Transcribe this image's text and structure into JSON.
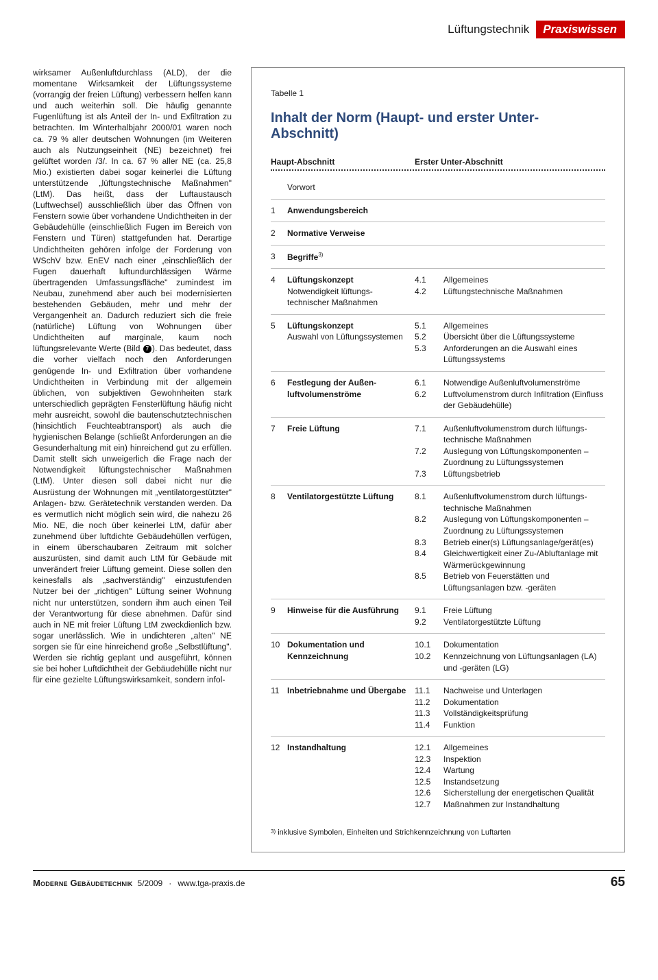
{
  "header": {
    "category": "Lüftungstechnik",
    "badge": "Praxiswissen",
    "badge_bg": "#cc0000"
  },
  "left_text": "wirksamer Außenluftdurchlass (ALD), der die momentane Wirksamkeit der Lüftungssysteme (vorrangig der freien Lüftung) verbessern helfen kann und auch weiterhin soll. Die häufig genannte Fugenlüftung ist als Anteil der In- und Exfiltration zu betrachten.\nIm Winterhalbjahr 2000/01 waren noch ca. 79 % aller deutschen Wohnungen (im Weiteren auch als Nutzungseinheit (NE) bezeichnet) frei gelüftet worden /3/. In ca. 67 % aller NE (ca. 25,8 Mio.) existierten dabei sogar keinerlei die Lüftung unterstützende „lüftungstechnische Maßnahmen\" (LtM). Das heißt, dass der Luftaustausch (Luftwechsel) ausschließlich über das Öffnen von Fenstern sowie über vorhandene Undichtheiten in der Gebäudehülle (einschließlich Fugen im Bereich von Fenstern und Türen) stattgefunden hat. Derartige Undichtheiten gehören infolge der Forderung von WSchV bzw. EnEV nach einer „einschließlich der Fugen dauerhaft luftundurchlässigen Wärme übertragenden Umfassungsfläche\" zumindest im Neubau, zunehmend aber auch bei modernisierten bestehenden Gebäuden, mehr und mehr der Vergangenheit an. Dadurch reduziert sich die freie (natürliche) Lüftung von Wohnungen über Undichtheiten auf marginale, kaum noch lüftungsrelevante Werte (Bild [7]). Das bedeutet, dass die vorher vielfach noch den Anforderungen genügende In- und Exfiltration über vorhandene Undichtheiten in Verbindung mit der allgemein üblichen, von subjektiven Gewohnheiten stark unterschiedlich geprägten Fensterlüftung häufig nicht mehr ausreicht, sowohl die bautenschutztechnischen (hinsichtlich Feuchteabtransport) als auch die hygienischen Belange (schließt Anforderungen an die Gesunderhaltung mit ein) hinreichend gut zu erfüllen. Damit stellt sich unweigerlich die Frage nach der Notwendigkeit lüftungstechnischer Maßnahmen (LtM). Unter diesen soll dabei nicht nur die Ausrüstung der Wohnungen mit „ventilatorgestützter\" Anlagen- bzw. Gerätetechnik verstanden werden. Da es vermutlich nicht möglich sein wird, die nahezu 26 Mio. NE, die noch über keinerlei LtM, dafür aber zunehmend über luftdichte Gebäudehüllen verfügen, in einem überschaubaren Zeitraum mit solcher auszurüsten, sind damit auch LtM für Gebäude mit unverändert freier Lüftung gemeint. Diese sollen den keinesfalls als „sachverständig\" einzustufenden Nutzer bei der „richtigen\" Lüftung seiner Wohnung nicht nur unterstützen, sondern ihm auch einen Teil der Verantwortung für diese abnehmen. Dafür sind auch in NE mit freier Lüftung LtM zweckdienlich bzw. sogar unerlässlich. Wie in undichteren „alten\" NE sorgen sie für eine hinreichend große „Selbstlüftung\". Werden sie richtig geplant und ausgeführt, können sie bei hoher Luftdichtheit der Gebäudehülle nicht nur für eine gezielte Lüftungswirksamkeit, sondern infol-",
  "bullet_number": "7",
  "table": {
    "caption": "Tabelle 1",
    "title": "Inhalt der Norm (Haupt- und erster Unter-Abschnitt)",
    "title_color": "#2e4a7a",
    "head": [
      "Haupt-Abschnitt",
      "Erster Unter-Abschnitt"
    ],
    "footnote_mark": "3)",
    "footnote_text": "inklusive Symbolen, Einheiten und Strichkennzeichnung von Luftarten",
    "sections": [
      {
        "num": "",
        "main_bold": "",
        "main_rest": "Vorwort",
        "subs": []
      },
      {
        "num": "1",
        "main_bold": "Anwendungsbereich",
        "main_rest": "",
        "subs": []
      },
      {
        "num": "2",
        "main_bold": "Normative Verweise",
        "main_rest": "",
        "subs": []
      },
      {
        "num": "3",
        "main_bold": "Begriffe",
        "main_sup": "3)",
        "main_rest": "",
        "subs": []
      },
      {
        "num": "4",
        "main_bold": "Lüftungskonzept",
        "main_rest": "Notwendigkeit lüftungs­technischer Maßnahmen",
        "subs": [
          {
            "sn": "4.1",
            "st": "Allgemeines"
          },
          {
            "sn": "4.2",
            "st": "Lüftungstechnische Maßnahmen"
          }
        ]
      },
      {
        "num": "5",
        "main_bold": "Lüftungskonzept",
        "main_rest": "Auswahl von Lüftungssystemen",
        "subs": [
          {
            "sn": "5.1",
            "st": "Allgemeines"
          },
          {
            "sn": "5.2",
            "st": "Übersicht über die Lüftungssysteme"
          },
          {
            "sn": "5.3",
            "st": "Anforderungen an die Auswahl eines Lüftungssystems"
          }
        ]
      },
      {
        "num": "6",
        "main_bold": "Festlegung der Außen­luftvolumenströme",
        "main_rest": "",
        "subs": [
          {
            "sn": "6.1",
            "st": "Notwendige Außenluftvolumenströme"
          },
          {
            "sn": "6.2",
            "st": "Luftvolumenstrom durch Infiltration (Einfluss der Gebäudehülle)"
          }
        ]
      },
      {
        "num": "7",
        "main_bold": "Freie Lüftung",
        "main_rest": "",
        "subs": [
          {
            "sn": "7.1",
            "st": "Außenluftvolumenstrom durch lüftungs­technische Maßnahmen"
          },
          {
            "sn": "7.2",
            "st": "Auslegung von Lüftungskomponenten – Zuordnung zu Lüftungssystemen"
          },
          {
            "sn": "7.3",
            "st": "Lüftungsbetrieb"
          }
        ]
      },
      {
        "num": "8",
        "main_bold": "Ventilatorgestützte Lüftung",
        "main_rest": "",
        "subs": [
          {
            "sn": "8.1",
            "st": "Außenluftvolumenstrom durch lüftungs­technische Maßnahmen"
          },
          {
            "sn": "8.2",
            "st": "Auslegung von Lüftungskomponenten – Zuordnung zu Lüftungssystemen"
          },
          {
            "sn": "8.3",
            "st": "Betrieb einer(s) Lüftungsanlage/gerät(es)"
          },
          {
            "sn": "8.4",
            "st": "Gleichwertigkeit einer Zu-/Abluftanlage mit Wärmerückgewinnung"
          },
          {
            "sn": "8.5",
            "st": "Betrieb von Feuerstätten und Lüftungsanlagen bzw. -geräten"
          }
        ]
      },
      {
        "num": "9",
        "main_bold": "Hinweise für die Ausführung",
        "main_rest": "",
        "subs": [
          {
            "sn": "9.1",
            "st": "Freie Lüftung"
          },
          {
            "sn": "9.2",
            "st": "Ventilatorgestützte Lüftung"
          }
        ]
      },
      {
        "num": "10",
        "main_bold": "Dokumentation und Kennzeichnung",
        "main_rest": "",
        "subs": [
          {
            "sn": "10.1",
            "st": "Dokumentation"
          },
          {
            "sn": "10.2",
            "st": "Kennzeichnung von Lüftungsanlagen (LA) und -geräten (LG)"
          }
        ]
      },
      {
        "num": "11",
        "main_bold": "Inbetriebnahme und Übergabe",
        "main_rest": "",
        "subs": [
          {
            "sn": "11.1",
            "st": "Nachweise und Unterlagen"
          },
          {
            "sn": "11.2",
            "st": "Dokumentation"
          },
          {
            "sn": "11.3",
            "st": "Vollständigkeitsprüfung"
          },
          {
            "sn": "11.4",
            "st": "Funktion"
          }
        ]
      },
      {
        "num": "12",
        "main_bold": "Instandhaltung",
        "main_rest": "",
        "subs": [
          {
            "sn": "12.1",
            "st": "Allgemeines"
          },
          {
            "sn": "12.3",
            "st": "Inspektion"
          },
          {
            "sn": "12.4",
            "st": "Wartung"
          },
          {
            "sn": "12.5",
            "st": "Instandsetzung"
          },
          {
            "sn": "12.6",
            "st": "Sicherstellung der energetischen Qualität"
          },
          {
            "sn": "12.7",
            "st": "Maßnahmen zur Instandhaltung"
          }
        ]
      }
    ]
  },
  "footer": {
    "magazine": "Moderne Gebäudetechnik",
    "issue": "5/2009",
    "sep": "·",
    "site": "www.tga-praxis.de",
    "page": "65"
  }
}
